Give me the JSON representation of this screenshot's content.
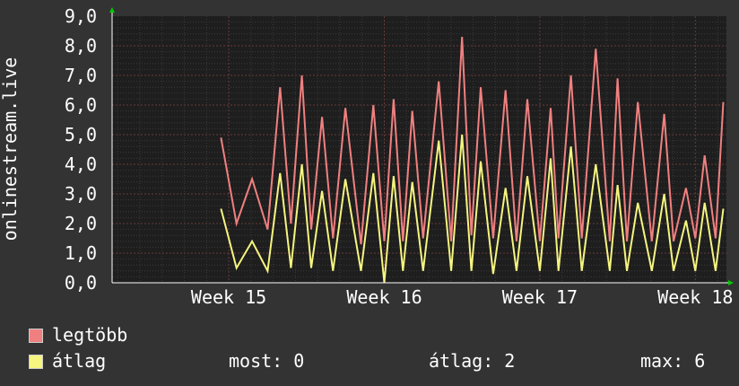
{
  "chart_data": {
    "type": "line",
    "ylabel": "onlinestream.live",
    "ylim": [
      0,
      9
    ],
    "y_ticks": [
      "0,0",
      "1,0",
      "2,0",
      "3,0",
      "4,0",
      "5,0",
      "6,0",
      "7,0",
      "8,0",
      "9,0"
    ],
    "x_ticks": [
      {
        "label": "Week 15",
        "week": 15
      },
      {
        "label": "Week 16",
        "week": 16
      },
      {
        "label": "Week 17",
        "week": 17
      },
      {
        "label": "Week 18",
        "week": 18
      }
    ],
    "xlim": [
      14.25,
      18.2
    ],
    "grid": true,
    "series": [
      {
        "name": "legtöbb",
        "color": "#f08080",
        "x": [
          14.95,
          15.05,
          15.15,
          15.25,
          15.33,
          15.4,
          15.47,
          15.53,
          15.6,
          15.67,
          15.75,
          15.85,
          15.93,
          16.0,
          16.06,
          16.12,
          16.18,
          16.25,
          16.35,
          16.43,
          16.5,
          16.56,
          16.62,
          16.7,
          16.78,
          16.85,
          16.92,
          17.0,
          17.07,
          17.12,
          17.2,
          17.27,
          17.36,
          17.45,
          17.5,
          17.56,
          17.63,
          17.72,
          17.8,
          17.86,
          17.94,
          18.0,
          18.06,
          18.13,
          18.18
        ],
        "values": [
          4.9,
          2.0,
          3.5,
          1.8,
          6.6,
          2.0,
          7.0,
          1.8,
          5.6,
          1.5,
          5.9,
          1.3,
          6.0,
          1.4,
          6.2,
          1.4,
          5.8,
          1.5,
          6.8,
          1.4,
          8.3,
          1.6,
          6.6,
          1.5,
          6.5,
          1.4,
          6.2,
          1.4,
          5.9,
          1.5,
          7.0,
          1.5,
          7.9,
          1.4,
          6.9,
          1.4,
          6.1,
          1.4,
          5.7,
          1.4,
          3.2,
          1.5,
          4.3,
          1.5,
          6.1
        ]
      },
      {
        "name": "átlag",
        "color": "#f5f580",
        "x": [
          14.95,
          15.05,
          15.15,
          15.25,
          15.33,
          15.4,
          15.47,
          15.53,
          15.6,
          15.67,
          15.75,
          15.85,
          15.93,
          16.0,
          16.06,
          16.12,
          16.18,
          16.25,
          16.35,
          16.43,
          16.5,
          16.56,
          16.62,
          16.7,
          16.78,
          16.85,
          16.92,
          17.0,
          17.07,
          17.12,
          17.2,
          17.27,
          17.36,
          17.45,
          17.5,
          17.56,
          17.63,
          17.72,
          17.8,
          17.86,
          17.94,
          18.0,
          18.06,
          18.13,
          18.18
        ],
        "values": [
          2.5,
          0.5,
          1.4,
          0.4,
          3.7,
          0.5,
          4.0,
          0.5,
          3.1,
          0.4,
          3.5,
          0.4,
          3.7,
          0.0,
          3.6,
          0.4,
          3.4,
          0.4,
          4.8,
          0.4,
          5.0,
          0.4,
          4.1,
          0.3,
          3.2,
          0.4,
          3.6,
          0.4,
          4.2,
          0.4,
          4.6,
          0.4,
          4.0,
          0.4,
          3.3,
          0.4,
          2.7,
          0.4,
          3.0,
          0.4,
          2.1,
          0.4,
          2.7,
          0.4,
          2.5
        ]
      }
    ]
  },
  "legend": [
    {
      "label": "legtöbb",
      "color": "#f08080"
    },
    {
      "label": "átlag",
      "color": "#f5f580"
    }
  ],
  "stats": {
    "most": "most: 0",
    "atlag": "átlag: 2",
    "max": "max: 6"
  }
}
